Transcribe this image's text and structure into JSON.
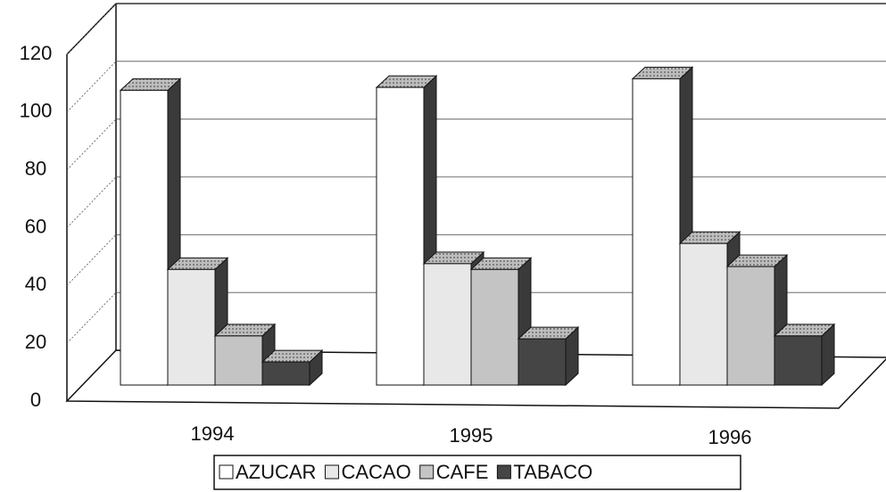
{
  "chart_data": {
    "type": "bar3d",
    "categories": [
      "1994",
      "1995",
      "1996"
    ],
    "series": [
      {
        "name": "AZUCAR",
        "color": "#ffffff",
        "values": [
          102,
          103,
          106
        ]
      },
      {
        "name": "CACAO",
        "color": "#e8e8e8",
        "values": [
          40,
          42,
          49
        ]
      },
      {
        "name": "CAFE",
        "color": "#c4c4c4",
        "values": [
          17,
          40,
          41
        ]
      },
      {
        "name": "TABACO",
        "color": "#454545",
        "values": [
          8,
          16,
          17
        ]
      }
    ],
    "ylim": [
      0,
      120
    ],
    "yticks": [
      0,
      20,
      40,
      60,
      80,
      100,
      120
    ],
    "grid": true,
    "legend": "bottom"
  }
}
